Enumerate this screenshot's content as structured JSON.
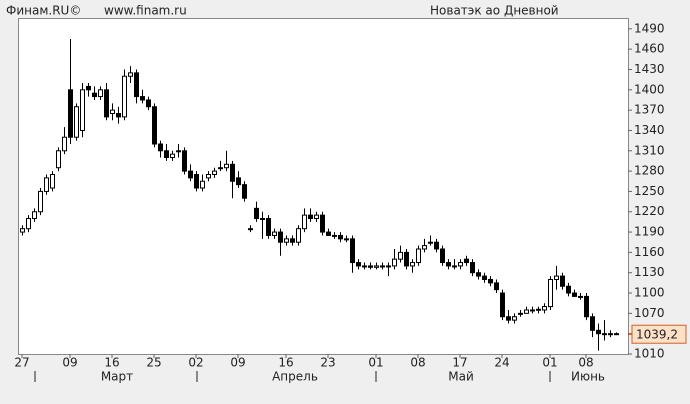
{
  "chart_data": {
    "type": "candlestick",
    "source": "Финам.RU©",
    "site": "www.finam.ru",
    "title": "Новатэк ао Дневной",
    "categories": [
      "27",
      null,
      null,
      null,
      null,
      null,
      null,
      null,
      "09",
      null,
      null,
      null,
      null,
      null,
      null,
      "16",
      null,
      null,
      null,
      null,
      null,
      null,
      "25",
      null,
      null,
      null,
      null,
      null,
      null,
      "02",
      null,
      null,
      null,
      null,
      null,
      null,
      "09",
      null,
      null,
      null,
      null,
      null,
      null,
      null,
      "16",
      null,
      null,
      null,
      null,
      null,
      null,
      "23",
      null,
      null,
      null,
      null,
      null,
      null,
      null,
      "01",
      null,
      null,
      null,
      null,
      null,
      null,
      "08",
      null,
      null,
      null,
      null,
      null,
      null,
      "17",
      null,
      null,
      null,
      null,
      null,
      null,
      "24",
      null,
      null,
      null,
      null,
      null,
      null,
      null,
      "01",
      null,
      null,
      null,
      null,
      null,
      "08",
      null,
      null,
      null,
      null,
      null
    ],
    "months": [
      "Март",
      "Апрель",
      "Май",
      "Июнь"
    ],
    "candles": [
      [
        1190,
        1200,
        1185,
        1195
      ],
      [
        1195,
        1215,
        1190,
        1210
      ],
      [
        1210,
        1225,
        1205,
        1220
      ],
      [
        1220,
        1255,
        1215,
        1250
      ],
      [
        1250,
        1275,
        1245,
        1270
      ],
      [
        1255,
        1280,
        1250,
        1275
      ],
      [
        1285,
        1315,
        1280,
        1310
      ],
      [
        1310,
        1345,
        1305,
        1330
      ],
      [
        1400,
        1475,
        1320,
        1330
      ],
      [
        1330,
        1380,
        1325,
        1375
      ],
      [
        1340,
        1410,
        1330,
        1400
      ],
      [
        1405,
        1410,
        1390,
        1400
      ],
      [
        1395,
        1405,
        1385,
        1390
      ],
      [
        1390,
        1405,
        1385,
        1400
      ],
      [
        1400,
        1410,
        1355,
        1360
      ],
      [
        1365,
        1380,
        1355,
        1370
      ],
      [
        1365,
        1375,
        1350,
        1360
      ],
      [
        1360,
        1430,
        1355,
        1420
      ],
      [
        1420,
        1435,
        1410,
        1425
      ],
      [
        1425,
        1430,
        1380,
        1390
      ],
      [
        1390,
        1400,
        1380,
        1385
      ],
      [
        1385,
        1390,
        1370,
        1375
      ],
      [
        1375,
        1380,
        1315,
        1320
      ],
      [
        1320,
        1325,
        1300,
        1310
      ],
      [
        1310,
        1320,
        1295,
        1300
      ],
      [
        1300,
        1310,
        1295,
        1305
      ],
      [
        1310,
        1320,
        1300,
        1310
      ],
      [
        1310,
        1315,
        1275,
        1280
      ],
      [
        1280,
        1290,
        1265,
        1270
      ],
      [
        1275,
        1280,
        1250,
        1255
      ],
      [
        1255,
        1275,
        1250,
        1265
      ],
      [
        1270,
        1280,
        1265,
        1275
      ],
      [
        1275,
        1285,
        1270,
        1280
      ],
      [
        1285,
        1295,
        1280,
        1285
      ],
      [
        1285,
        1310,
        1280,
        1290
      ],
      [
        1290,
        1295,
        1240,
        1265
      ],
      [
        1270,
        1280,
        1255,
        1260
      ],
      [
        1260,
        1265,
        1235,
        1240
      ],
      [
        1195,
        1200,
        1190,
        1195
      ],
      [
        1225,
        1235,
        1205,
        1210
      ],
      [
        1210,
        1220,
        1180,
        1210
      ],
      [
        1210,
        1215,
        1180,
        1185
      ],
      [
        1185,
        1195,
        1180,
        1190
      ],
      [
        1190,
        1195,
        1155,
        1175
      ],
      [
        1175,
        1185,
        1170,
        1180
      ],
      [
        1180,
        1185,
        1170,
        1175
      ],
      [
        1175,
        1200,
        1170,
        1195
      ],
      [
        1195,
        1225,
        1190,
        1215
      ],
      [
        1215,
        1225,
        1205,
        1210
      ],
      [
        1210,
        1220,
        1205,
        1215
      ],
      [
        1215,
        1220,
        1185,
        1190
      ],
      [
        1190,
        1195,
        1185,
        1185
      ],
      [
        1185,
        1190,
        1180,
        1185
      ],
      [
        1185,
        1190,
        1175,
        1180
      ],
      [
        1180,
        1185,
        1175,
        1180
      ],
      [
        1180,
        1185,
        1130,
        1145
      ],
      [
        1145,
        1150,
        1135,
        1140
      ],
      [
        1140,
        1145,
        1135,
        1140
      ],
      [
        1140,
        1145,
        1135,
        1138
      ],
      [
        1138,
        1145,
        1135,
        1140
      ],
      [
        1140,
        1145,
        1135,
        1140
      ],
      [
        1140,
        1145,
        1125,
        1140
      ],
      [
        1140,
        1165,
        1135,
        1150
      ],
      [
        1150,
        1170,
        1145,
        1160
      ],
      [
        1160,
        1165,
        1135,
        1140
      ],
      [
        1140,
        1150,
        1130,
        1145
      ],
      [
        1145,
        1170,
        1140,
        1165
      ],
      [
        1165,
        1180,
        1160,
        1170
      ],
      [
        1175,
        1185,
        1170,
        1175
      ],
      [
        1175,
        1180,
        1160,
        1165
      ],
      [
        1165,
        1170,
        1140,
        1145
      ],
      [
        1145,
        1150,
        1135,
        1140
      ],
      [
        1140,
        1150,
        1135,
        1140
      ],
      [
        1140,
        1150,
        1135,
        1145
      ],
      [
        1150,
        1155,
        1140,
        1145
      ],
      [
        1145,
        1150,
        1125,
        1130
      ],
      [
        1130,
        1135,
        1120,
        1125
      ],
      [
        1125,
        1130,
        1115,
        1120
      ],
      [
        1120,
        1125,
        1110,
        1115
      ],
      [
        1115,
        1120,
        1100,
        1105
      ],
      [
        1100,
        1105,
        1060,
        1065
      ],
      [
        1065,
        1075,
        1055,
        1060
      ],
      [
        1060,
        1070,
        1055,
        1065
      ],
      [
        1070,
        1075,
        1065,
        1070
      ],
      [
        1070,
        1080,
        1070,
        1075
      ],
      [
        1075,
        1080,
        1070,
        1075
      ],
      [
        1075,
        1080,
        1070,
        1076
      ],
      [
        1075,
        1085,
        1070,
        1080
      ],
      [
        1080,
        1125,
        1075,
        1120
      ],
      [
        1120,
        1140,
        1105,
        1125
      ],
      [
        1125,
        1130,
        1105,
        1110
      ],
      [
        1110,
        1115,
        1095,
        1100
      ],
      [
        1100,
        1105,
        1095,
        1095
      ],
      [
        1095,
        1100,
        1090,
        1095
      ],
      [
        1095,
        1100,
        1060,
        1065
      ],
      [
        1065,
        1070,
        1035,
        1045
      ],
      [
        1045,
        1055,
        1015,
        1040
      ],
      [
        1040,
        1060,
        1030,
        1040
      ],
      [
        1040,
        1045,
        1035,
        1040
      ],
      [
        1040,
        1042,
        1038,
        1039.2
      ]
    ],
    "last_value": {
      "value": 1039.2,
      "label": "1039,2"
    },
    "ylim": [
      1010,
      1506
    ],
    "yticks": [
      1010,
      1040,
      1070,
      1100,
      1130,
      1160,
      1190,
      1220,
      1250,
      1280,
      1310,
      1340,
      1370,
      1400,
      1430,
      1460,
      1490
    ],
    "up_color": "#ffffff",
    "down_color": "#000000"
  }
}
